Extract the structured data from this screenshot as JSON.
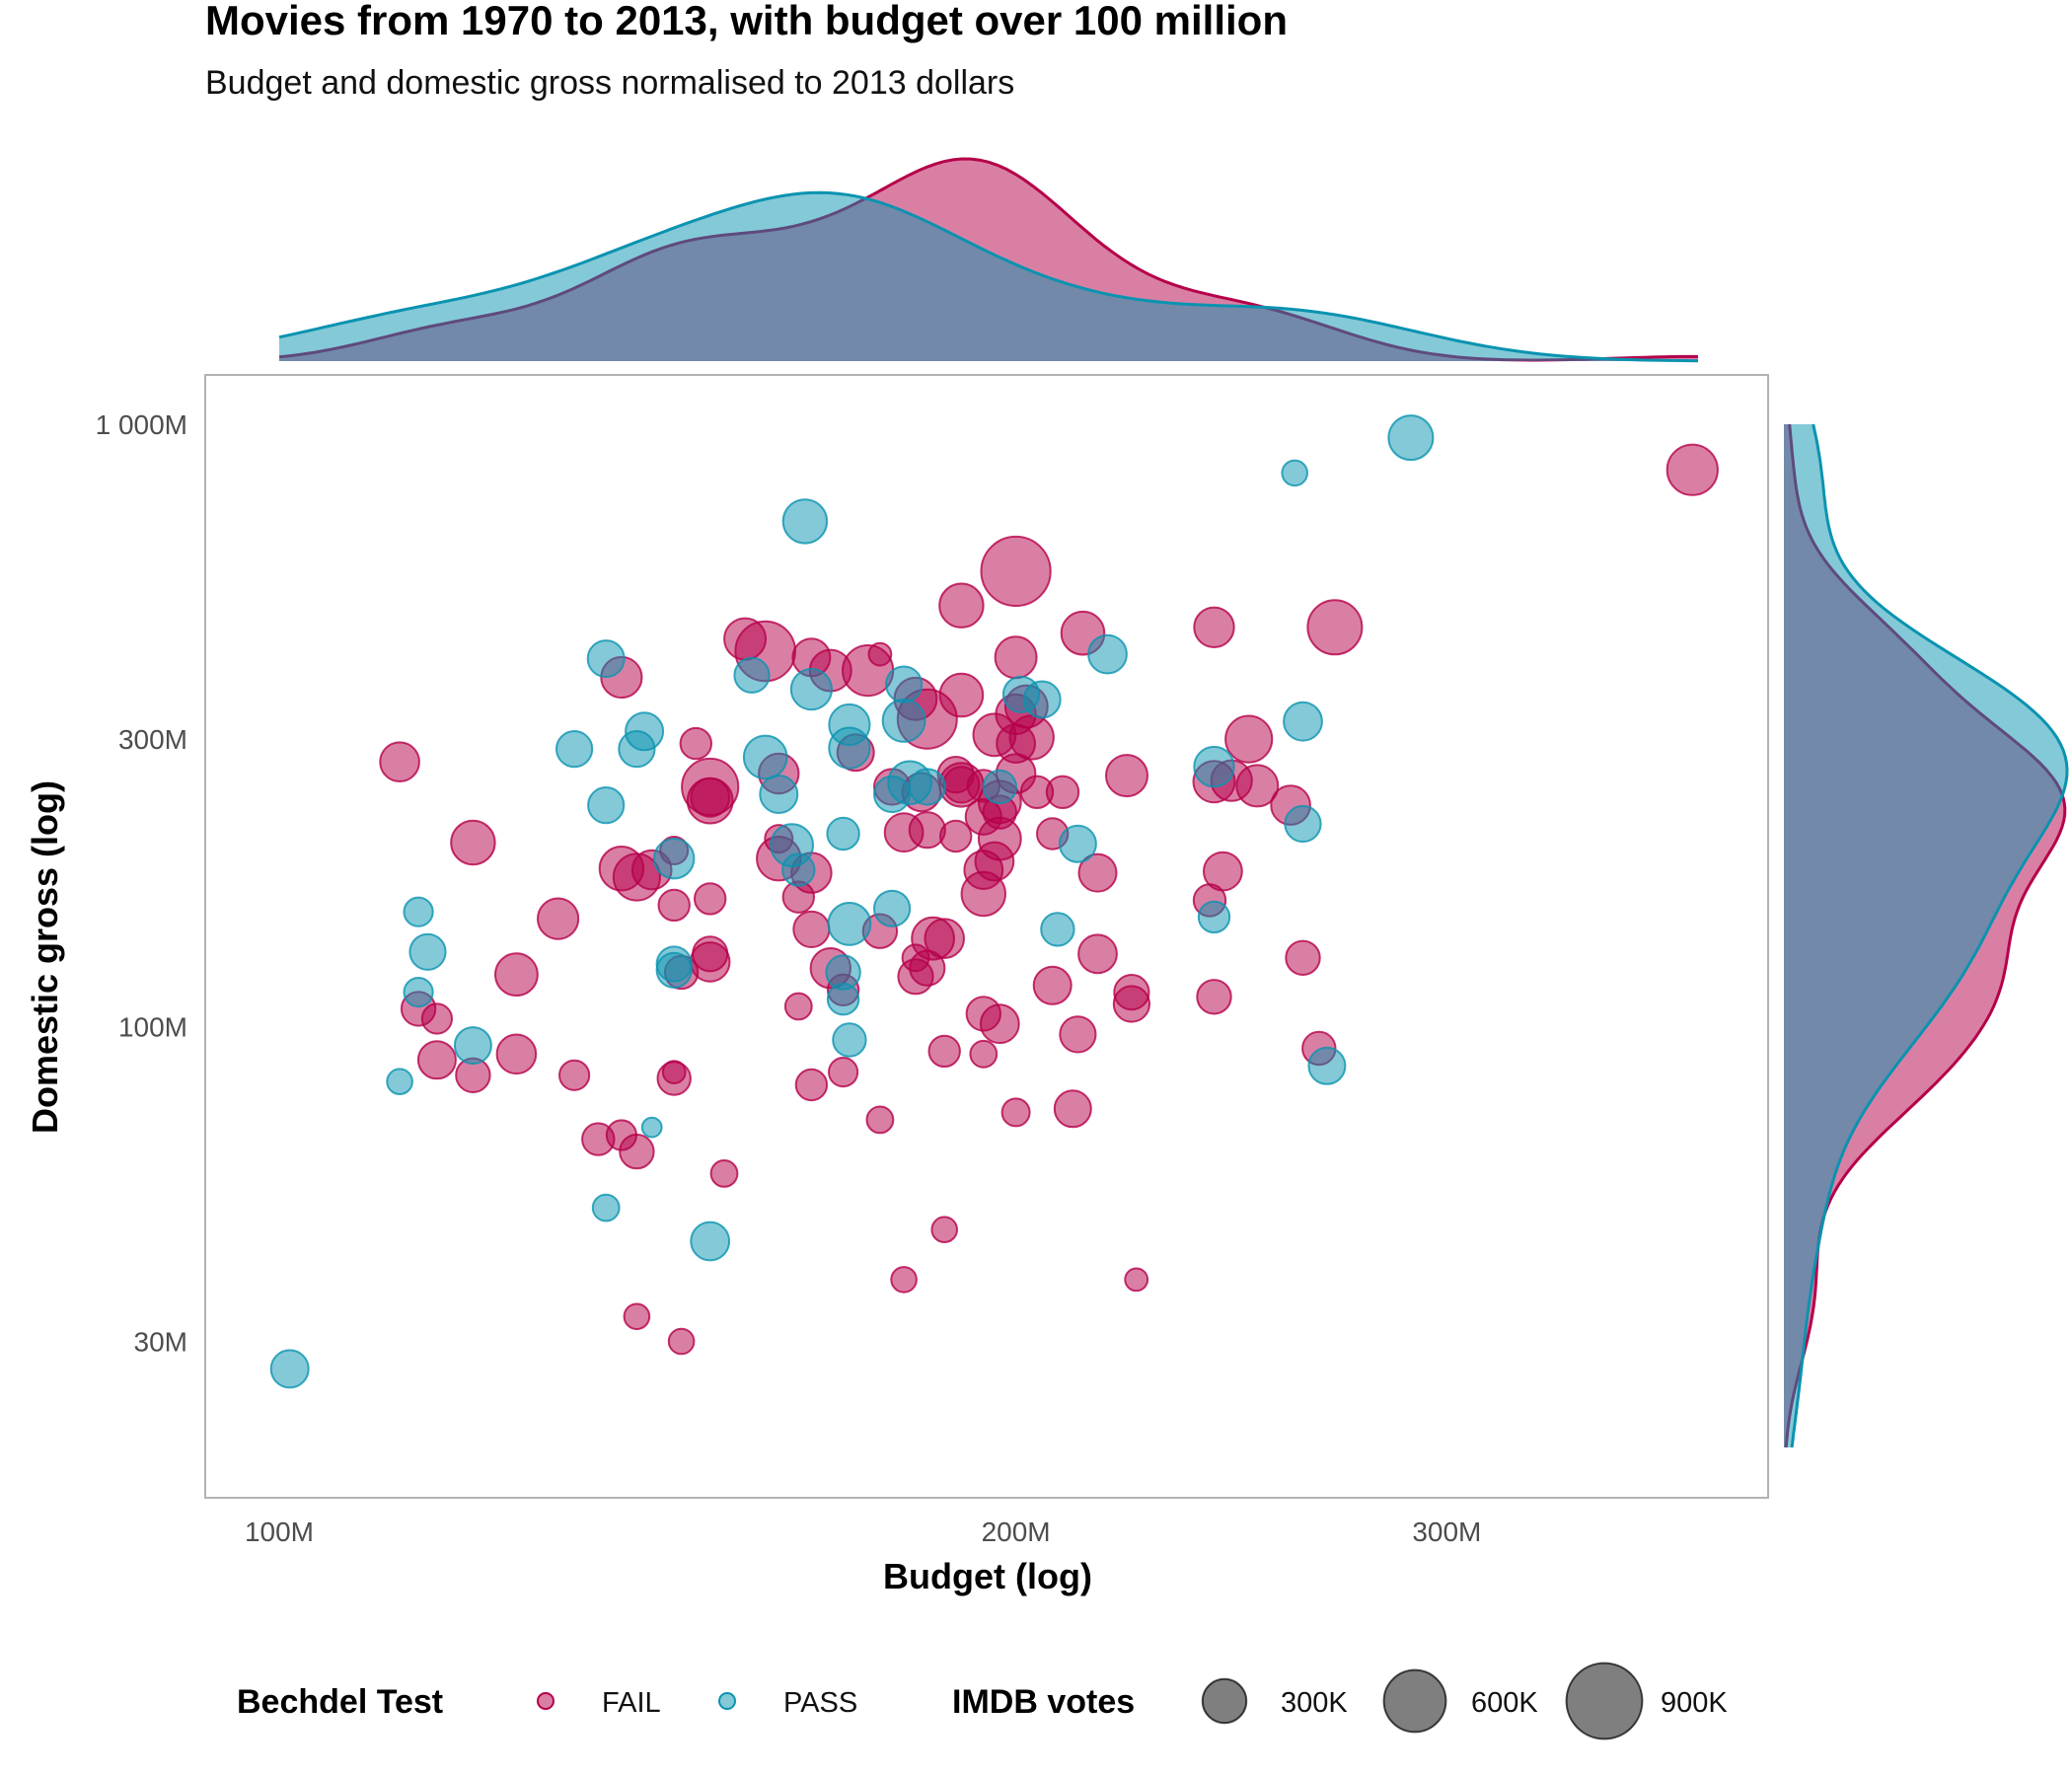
{
  "chart_data": {
    "type": "scatter",
    "title": "Movies from 1970 to 2013, with budget over 100 million",
    "subtitle": "Budget and domestic gross normalised to 2013 dollars",
    "xlabel": "Budget (log)",
    "ylabel": "Domestic gross (log)",
    "x_scale": "log",
    "y_scale": "log",
    "xlim": [
      100,
      380
    ],
    "ylim": [
      20,
      1000
    ],
    "x_ticks": [
      100,
      200,
      300
    ],
    "x_tick_labels": [
      "100M",
      "200M",
      "300M"
    ],
    "y_ticks": [
      30,
      100,
      300,
      1000
    ],
    "y_tick_labels": [
      "30M",
      "100M",
      "300M",
      "1 000M"
    ],
    "units": "millions USD (2013)",
    "grid": false,
    "colors": {
      "FAIL": "#b5004a",
      "PASS": "#0a93b0"
    },
    "legend": {
      "position": "bottom",
      "color_title": "Bechdel Test",
      "color_items": [
        "FAIL",
        "PASS"
      ],
      "size_title": "IMDB votes",
      "size_items": [
        {
          "label": "300K",
          "votes": 300
        },
        {
          "label": "600K",
          "votes": 600
        },
        {
          "label": "900K",
          "votes": 900
        }
      ]
    },
    "series": [
      {
        "name": "FAIL",
        "points": [
          [
            112,
            275,
            240
          ],
          [
            114,
            107,
            180
          ],
          [
            116,
            103,
            140
          ],
          [
            116,
            88,
            220
          ],
          [
            120,
            202,
            300
          ],
          [
            120,
            83,
            180
          ],
          [
            125,
            122,
            280
          ],
          [
            125,
            90,
            240
          ],
          [
            130,
            151,
            260
          ],
          [
            132,
            83,
            140
          ],
          [
            135,
            65,
            160
          ],
          [
            138,
            380,
            260
          ],
          [
            138,
            183,
            300
          ],
          [
            138,
            66,
            140
          ],
          [
            140,
            177,
            340
          ],
          [
            140,
            62,
            180
          ],
          [
            140,
            33,
            100
          ],
          [
            142,
            182,
            240
          ],
          [
            145,
            159,
            150
          ],
          [
            145,
            196,
            120
          ],
          [
            145,
            82,
            170
          ],
          [
            145,
            84,
            80
          ],
          [
            146,
            123,
            170
          ],
          [
            146,
            30,
            100
          ],
          [
            148,
            295,
            150
          ],
          [
            150,
            237,
            320
          ],
          [
            150,
            163,
            150
          ],
          [
            150,
            132,
            190
          ],
          [
            150,
            250,
            500
          ],
          [
            150,
            128,
            240
          ],
          [
            150,
            240,
            230
          ],
          [
            152,
            57,
            110
          ],
          [
            155,
            440,
            270
          ],
          [
            158,
            420,
            560
          ],
          [
            160,
            263,
            250
          ],
          [
            160,
            190,
            300
          ],
          [
            160,
            205,
            120
          ],
          [
            163,
            108,
            110
          ],
          [
            163,
            164,
            150
          ],
          [
            165,
            80,
            150
          ],
          [
            165,
            180,
            250
          ],
          [
            165,
            145,
            200
          ],
          [
            165,
            410,
            220
          ],
          [
            168,
            390,
            270
          ],
          [
            168,
            125,
            250
          ],
          [
            170,
            115,
            150
          ],
          [
            170,
            84,
            130
          ],
          [
            172,
            285,
            210
          ],
          [
            174,
            390,
            400
          ],
          [
            176,
            70,
            110
          ],
          [
            176,
            415,
            80
          ],
          [
            176,
            144,
            180
          ],
          [
            178,
            250,
            200
          ],
          [
            180,
            210,
            230
          ],
          [
            180,
            38,
            100
          ],
          [
            182,
            130,
            110
          ],
          [
            182,
            121,
            190
          ],
          [
            182,
            350,
            280
          ],
          [
            183,
            245,
            230
          ],
          [
            184,
            324,
            550
          ],
          [
            184,
            125,
            190
          ],
          [
            184,
            212,
            200
          ],
          [
            185,
            140,
            280
          ],
          [
            187,
            140,
            240
          ],
          [
            187,
            46,
            100
          ],
          [
            187,
            91,
            150
          ],
          [
            189,
            262,
            200
          ],
          [
            189,
            207,
            150
          ],
          [
            190,
            355,
            290
          ],
          [
            190,
            252,
            200
          ],
          [
            190,
            500,
            300
          ],
          [
            190,
            252,
            300
          ],
          [
            194,
            223,
            200
          ],
          [
            194,
            182,
            230
          ],
          [
            194,
            105,
            180
          ],
          [
            194,
            166,
            300
          ],
          [
            194,
            251,
            160
          ],
          [
            194,
            90,
            110
          ],
          [
            196,
            305,
            280
          ],
          [
            196,
            188,
            230
          ],
          [
            197,
            236,
            280
          ],
          [
            197,
            227,
            170
          ],
          [
            197,
            205,
            280
          ],
          [
            197,
            101,
            230
          ],
          [
            200,
            72,
            120
          ],
          [
            200,
            410,
            270
          ],
          [
            200,
            263,
            240
          ],
          [
            200,
            330,
            250
          ],
          [
            200,
            570,
            750
          ],
          [
            200,
            295,
            230
          ],
          [
            202,
            340,
            280
          ],
          [
            203,
            302,
            300
          ],
          [
            204,
            245,
            160
          ],
          [
            207,
            117,
            220
          ],
          [
            207,
            209,
            150
          ],
          [
            209,
            245,
            160
          ],
          [
            211,
            73,
            210
          ],
          [
            212,
            97,
            200
          ],
          [
            213,
            450,
            290
          ],
          [
            216,
            180,
            220
          ],
          [
            216,
            132,
            230
          ],
          [
            222,
            261,
            270
          ],
          [
            223,
            109,
            200
          ],
          [
            223,
            114,
            190
          ],
          [
            224,
            38,
            80
          ],
          [
            240,
            162,
            160
          ],
          [
            241,
            255,
            270
          ],
          [
            241,
            460,
            250
          ],
          [
            241,
            112,
            180
          ],
          [
            243,
            181,
            230
          ],
          [
            245,
            256,
            260
          ],
          [
            249,
            300,
            340
          ],
          [
            251,
            251,
            270
          ],
          [
            259,
            233,
            240
          ],
          [
            262,
            130,
            180
          ],
          [
            266,
            92,
            170
          ],
          [
            270,
            460,
            460
          ],
          [
            378,
            840,
            400
          ]
        ]
      },
      {
        "name": "PASS",
        "points": [
          [
            101,
            27,
            220
          ],
          [
            112,
            81,
            100
          ],
          [
            114,
            155,
            130
          ],
          [
            114,
            114,
            130
          ],
          [
            115,
            133,
            200
          ],
          [
            120,
            93,
            210
          ],
          [
            132,
            289,
            200
          ],
          [
            136,
            408,
            210
          ],
          [
            136,
            233,
            200
          ],
          [
            136,
            50,
            110
          ],
          [
            140,
            289,
            200
          ],
          [
            141,
            309,
            220
          ],
          [
            142,
            68,
            60
          ],
          [
            145,
            190,
            250
          ],
          [
            145,
            127,
            190
          ],
          [
            145,
            124,
            190
          ],
          [
            150,
            44,
            230
          ],
          [
            156,
            383,
            190
          ],
          [
            158,
            280,
            290
          ],
          [
            160,
            243,
            220
          ],
          [
            162,
            200,
            280
          ],
          [
            163,
            182,
            160
          ],
          [
            164,
            690,
            300
          ],
          [
            165,
            363,
            260
          ],
          [
            170,
            123,
            180
          ],
          [
            170,
            111,
            150
          ],
          [
            170,
            209,
            160
          ],
          [
            171,
            317,
            260
          ],
          [
            171,
            148,
            280
          ],
          [
            171,
            290,
            260
          ],
          [
            171,
            95,
            170
          ],
          [
            178,
            157,
            200
          ],
          [
            178,
            243,
            200
          ],
          [
            180,
            370,
            200
          ],
          [
            180,
            322,
            280
          ],
          [
            181,
            254,
            290
          ],
          [
            184,
            250,
            200
          ],
          [
            197,
            250,
            170
          ],
          [
            201,
            356,
            200
          ],
          [
            205,
            349,
            210
          ],
          [
            208,
            145,
            170
          ],
          [
            212,
            201,
            210
          ],
          [
            218,
            415,
            230
          ],
          [
            241,
            152,
            150
          ],
          [
            241,
            270,
            250
          ],
          [
            260,
            830,
            100
          ],
          [
            262,
            321,
            230
          ],
          [
            262,
            217,
            200
          ],
          [
            268,
            86,
            210
          ],
          [
            290,
            950,
            310
          ]
        ]
      }
    ]
  }
}
